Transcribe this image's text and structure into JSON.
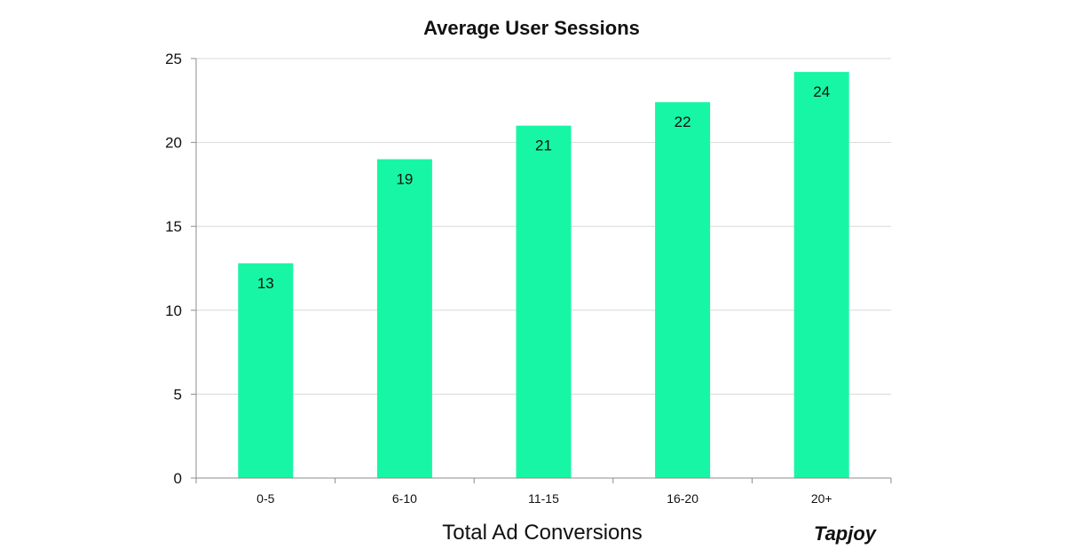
{
  "chart_data": {
    "type": "bar",
    "title": "Average User Sessions",
    "xlabel": "Total Ad Conversions",
    "ylabel": "",
    "categories": [
      "0-5",
      "6-10",
      "11-15",
      "16-20",
      "20+"
    ],
    "values": [
      12.8,
      19,
      21,
      22.4,
      24.2
    ],
    "data_labels": [
      "13",
      "19",
      "21",
      "22",
      "24"
    ],
    "ylim": [
      0,
      25
    ],
    "yticks": [
      "0",
      "5",
      "10",
      "15",
      "20",
      "25"
    ],
    "grid": true,
    "legend": "none",
    "bar_color": "#17F6A4"
  },
  "branding": {
    "logo_text": "Tapjoy"
  },
  "colors": {
    "grid": "#d9d9d9",
    "axis": "#8c8c8c",
    "text": "#111111"
  }
}
